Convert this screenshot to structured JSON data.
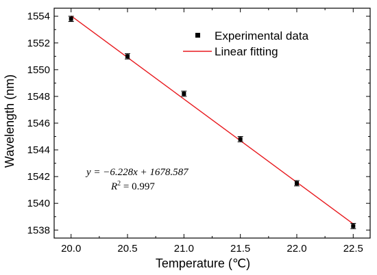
{
  "chart_data": {
    "type": "scatter",
    "xlabel": "Temperature (℃)",
    "ylabel": "Wavelength (nm)",
    "xlim": [
      19.85,
      22.65
    ],
    "ylim": [
      1537.4,
      1554.6
    ],
    "xticks": [
      20.0,
      20.5,
      21.0,
      21.5,
      22.0,
      22.5
    ],
    "xtick_labels": [
      "20.0",
      "20.5",
      "21.0",
      "21.5",
      "22.0",
      "22.5"
    ],
    "yticks": [
      1538,
      1540,
      1542,
      1544,
      1546,
      1548,
      1550,
      1552,
      1554
    ],
    "ytick_labels": [
      "1538",
      "1540",
      "1542",
      "1544",
      "1546",
      "1548",
      "1550",
      "1552",
      "1554"
    ],
    "grid": false,
    "legend_position": "top-right",
    "series": [
      {
        "name": "Experimental data",
        "kind": "points_with_error_bars",
        "color": "#000000",
        "x": [
          20.0,
          20.5,
          21.0,
          21.5,
          22.0,
          22.5
        ],
        "y": [
          1553.8,
          1551.0,
          1548.2,
          1544.8,
          1541.5,
          1538.3
        ],
        "error": [
          0.2,
          0.2,
          0.2,
          0.2,
          0.2,
          0.2
        ]
      },
      {
        "name": "Linear fitting",
        "kind": "line",
        "color": "#e8191e",
        "x": [
          20.0,
          22.5
        ],
        "y": [
          1554.03,
          1538.46
        ]
      }
    ],
    "annotations": {
      "equation": "y = −6.228x + 1678.587",
      "r_squared": "R2 = 0.997"
    }
  }
}
